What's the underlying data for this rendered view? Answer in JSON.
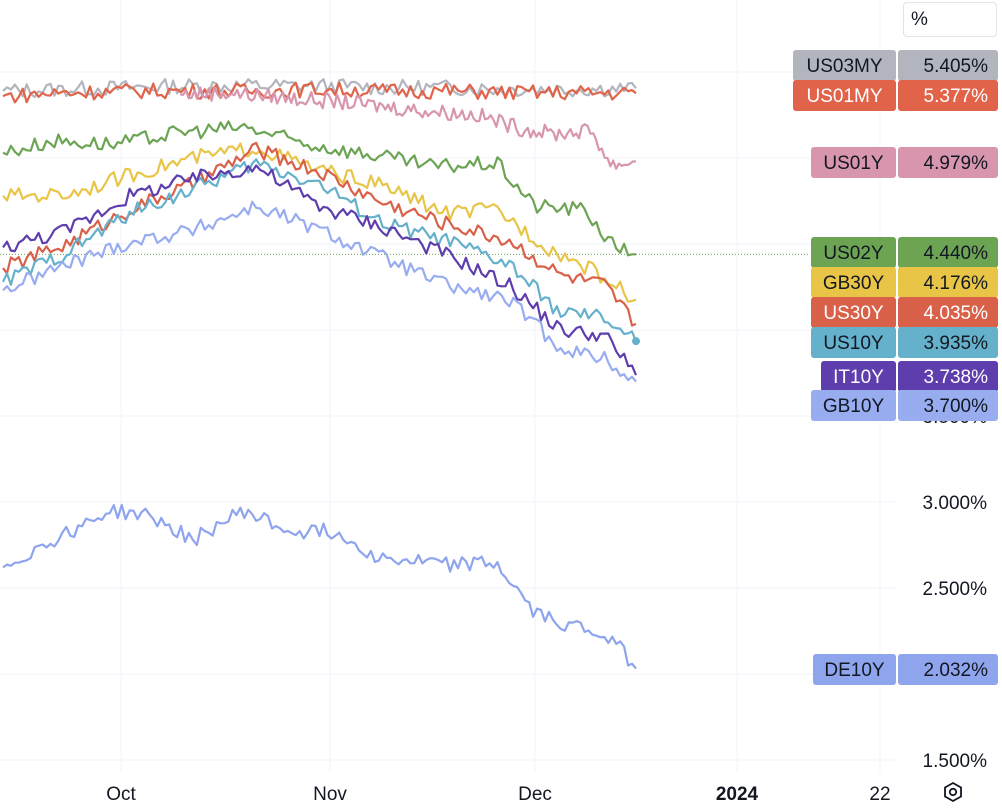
{
  "unit_selector": "%",
  "settings_icon": "settings-icon",
  "chart_data": {
    "type": "line",
    "x_ticks": [
      "Oct",
      "Nov",
      "Dec",
      "2024",
      "22"
    ],
    "x_tick_bold": [
      "2024"
    ],
    "y_ticks": [
      "1.500%",
      "2.500%",
      "3.000%",
      "3.500%"
    ],
    "y_range": [
      1.4,
      5.8
    ],
    "grid": true,
    "series": [
      {
        "name": "US03MY",
        "last": "5.405%",
        "color": "#b2b5be",
        "points": [
          [
            0.0,
            5.39
          ],
          [
            0.1,
            5.4
          ],
          [
            0.2,
            5.41
          ],
          [
            0.3,
            5.42
          ],
          [
            0.4,
            5.42
          ],
          [
            0.5,
            5.42
          ],
          [
            0.6,
            5.41
          ],
          [
            0.7,
            5.41
          ],
          [
            0.8,
            5.4
          ],
          [
            0.9,
            5.4
          ],
          [
            1.0,
            5.405
          ]
        ]
      },
      {
        "name": "US01MY",
        "last": "5.377%",
        "color": "#e0634a",
        "points": [
          [
            0.0,
            5.36
          ],
          [
            0.1,
            5.38
          ],
          [
            0.2,
            5.39
          ],
          [
            0.3,
            5.39
          ],
          [
            0.4,
            5.39
          ],
          [
            0.5,
            5.4
          ],
          [
            0.6,
            5.39
          ],
          [
            0.7,
            5.39
          ],
          [
            0.8,
            5.38
          ],
          [
            0.9,
            5.38
          ],
          [
            1.0,
            5.377
          ]
        ]
      },
      {
        "name": "US01Y",
        "last": "4.979%",
        "color": "#d896ae",
        "points": [
          [
            0.28,
            5.37
          ],
          [
            0.35,
            5.38
          ],
          [
            0.45,
            5.35
          ],
          [
            0.55,
            5.32
          ],
          [
            0.65,
            5.28
          ],
          [
            0.75,
            5.25
          ],
          [
            0.82,
            5.17
          ],
          [
            0.87,
            5.14
          ],
          [
            0.93,
            5.16
          ],
          [
            0.96,
            4.96
          ],
          [
            1.0,
            4.979
          ]
        ]
      },
      {
        "name": "US02Y",
        "last": "4.440%",
        "color": "#6ca454",
        "points": [
          [
            0.0,
            5.03
          ],
          [
            0.08,
            5.1
          ],
          [
            0.18,
            5.08
          ],
          [
            0.28,
            5.15
          ],
          [
            0.38,
            5.18
          ],
          [
            0.48,
            5.08
          ],
          [
            0.58,
            5.02
          ],
          [
            0.68,
            4.95
          ],
          [
            0.78,
            4.97
          ],
          [
            0.84,
            4.72
          ],
          [
            0.92,
            4.7
          ],
          [
            0.96,
            4.5
          ],
          [
            1.0,
            4.44
          ]
        ]
      },
      {
        "name": "GB30Y",
        "last": "4.176%",
        "color": "#e8c547",
        "points": [
          [
            0.0,
            4.78
          ],
          [
            0.1,
            4.79
          ],
          [
            0.2,
            4.9
          ],
          [
            0.3,
            5.0
          ],
          [
            0.4,
            5.06
          ],
          [
            0.5,
            4.93
          ],
          [
            0.6,
            4.84
          ],
          [
            0.7,
            4.68
          ],
          [
            0.78,
            4.7
          ],
          [
            0.86,
            4.48
          ],
          [
            0.93,
            4.35
          ],
          [
            1.0,
            4.176
          ]
        ]
      },
      {
        "name": "US30Y",
        "last": "4.035%",
        "color": "#d9614a",
        "points": [
          [
            0.0,
            4.36
          ],
          [
            0.1,
            4.5
          ],
          [
            0.2,
            4.7
          ],
          [
            0.3,
            4.85
          ],
          [
            0.4,
            5.05
          ],
          [
            0.5,
            4.92
          ],
          [
            0.6,
            4.74
          ],
          [
            0.7,
            4.62
          ],
          [
            0.8,
            4.52
          ],
          [
            0.88,
            4.32
          ],
          [
            0.95,
            4.26
          ],
          [
            1.0,
            4.035
          ]
        ]
      },
      {
        "name": "US10Y",
        "last": "3.935%",
        "color": "#65b1cc",
        "points": [
          [
            0.0,
            4.28
          ],
          [
            0.1,
            4.45
          ],
          [
            0.2,
            4.68
          ],
          [
            0.3,
            4.82
          ],
          [
            0.4,
            4.97
          ],
          [
            0.5,
            4.85
          ],
          [
            0.6,
            4.62
          ],
          [
            0.7,
            4.52
          ],
          [
            0.8,
            4.38
          ],
          [
            0.88,
            4.1
          ],
          [
            0.95,
            4.07
          ],
          [
            1.0,
            3.935
          ]
        ]
      },
      {
        "name": "IT10Y",
        "last": "3.738%",
        "color": "#5e3ead",
        "points": [
          [
            0.0,
            4.48
          ],
          [
            0.1,
            4.58
          ],
          [
            0.2,
            4.78
          ],
          [
            0.3,
            4.88
          ],
          [
            0.4,
            4.95
          ],
          [
            0.5,
            4.72
          ],
          [
            0.6,
            4.6
          ],
          [
            0.7,
            4.44
          ],
          [
            0.8,
            4.26
          ],
          [
            0.88,
            4.0
          ],
          [
            0.95,
            3.97
          ],
          [
            1.0,
            3.738
          ]
        ]
      },
      {
        "name": "GB10Y",
        "last": "3.700%",
        "color": "#98acf0",
        "points": [
          [
            0.0,
            4.23
          ],
          [
            0.1,
            4.38
          ],
          [
            0.2,
            4.51
          ],
          [
            0.3,
            4.58
          ],
          [
            0.4,
            4.72
          ],
          [
            0.5,
            4.58
          ],
          [
            0.6,
            4.42
          ],
          [
            0.7,
            4.26
          ],
          [
            0.8,
            4.17
          ],
          [
            0.88,
            3.9
          ],
          [
            0.95,
            3.83
          ],
          [
            1.0,
            3.7
          ]
        ]
      },
      {
        "name": "DE10Y",
        "last": "2.032%",
        "color": "#8ea5ee",
        "points": [
          [
            0.0,
            2.62
          ],
          [
            0.08,
            2.78
          ],
          [
            0.17,
            2.95
          ],
          [
            0.23,
            2.92
          ],
          [
            0.3,
            2.78
          ],
          [
            0.38,
            2.95
          ],
          [
            0.45,
            2.83
          ],
          [
            0.52,
            2.83
          ],
          [
            0.6,
            2.67
          ],
          [
            0.7,
            2.64
          ],
          [
            0.78,
            2.64
          ],
          [
            0.84,
            2.35
          ],
          [
            0.9,
            2.28
          ],
          [
            0.96,
            2.22
          ],
          [
            1.0,
            2.032
          ]
        ]
      }
    ],
    "reference_line": 4.44
  }
}
